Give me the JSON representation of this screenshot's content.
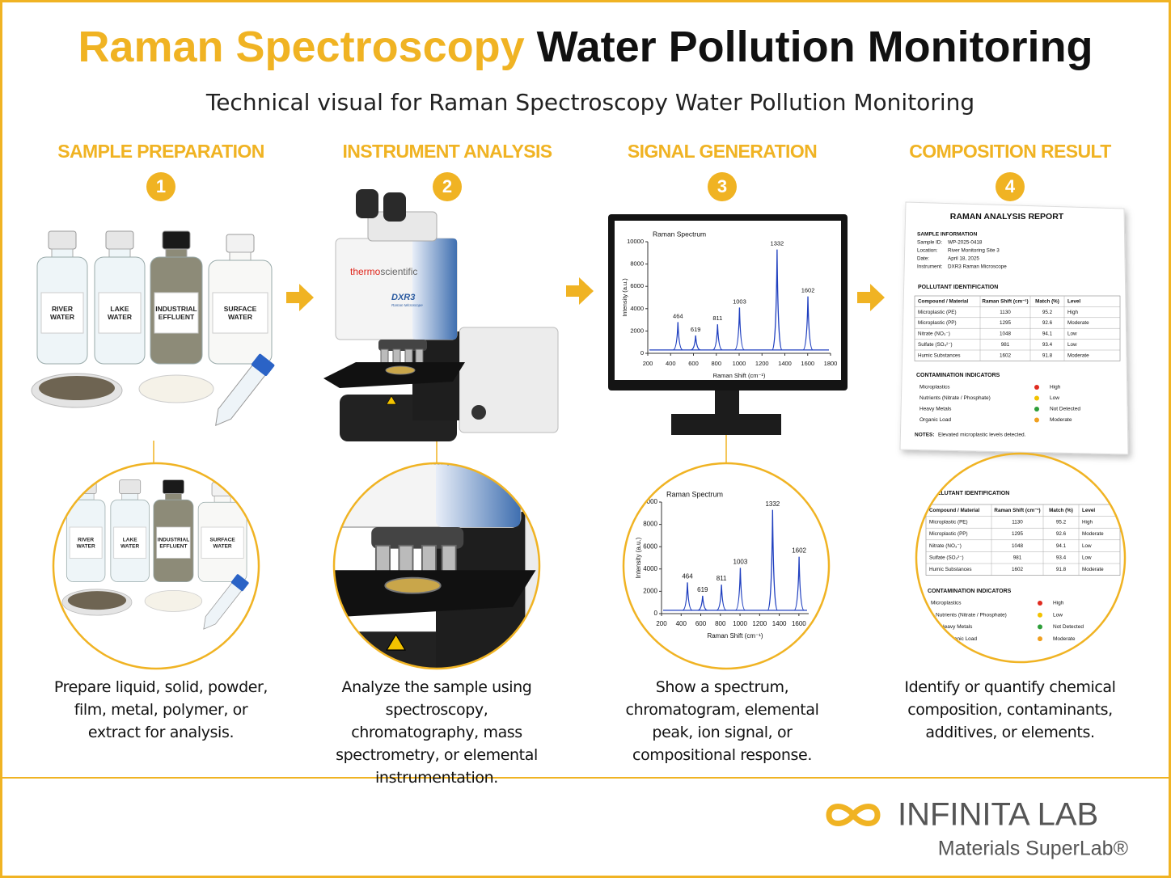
{
  "header": {
    "title_highlight": "Raman Spectroscopy",
    "title_rest": "Water Pollution Monitoring",
    "subtitle": "Technical visual for Raman Spectroscopy Water Pollution Monitoring"
  },
  "steps": [
    {
      "title": "SAMPLE PREPARATION",
      "number": 1,
      "description": "Prepare liquid, solid, powder, film, metal, polymer, or extract for analysis."
    },
    {
      "title": "INSTRUMENT ANALYSIS",
      "number": 2,
      "description": "Analyze the sample using spectroscopy, chromatography, mass spectrometry, or elemental instrumentation."
    },
    {
      "title": "SIGNAL GENERATION",
      "number": 3,
      "description": "Show a spectrum, chromatogram, elemental peak, ion signal, or compositional response."
    },
    {
      "title": "COMPOSITION RESULT",
      "number": 4,
      "description": "Identify or quantify chemical composition, contaminants, additives, or elements."
    }
  ],
  "samples": [
    "RIVER WATER",
    "LAKE WATER",
    "INDUSTRIAL EFFLUENT",
    "SURFACE WATER"
  ],
  "instrument": {
    "brand_a": "thermo",
    "brand_b": "scientific",
    "model": "DXR3",
    "model_sub": "Raman Microscope"
  },
  "spectrum": {
    "title": "Raman Spectrum",
    "x_label": "Raman Shift (cm⁻¹)",
    "y_label": "Intensity (a.u.)",
    "xlim": [
      200,
      1800
    ],
    "xticks": [
      200,
      400,
      600,
      800,
      1000,
      1200,
      1400,
      1600,
      1800
    ],
    "ylim": [
      0,
      10000
    ],
    "yticks": [
      0,
      2000,
      4000,
      6000,
      8000,
      10000
    ],
    "baseline": 300,
    "color": "#1f3fbf",
    "peaks": [
      {
        "x": 464,
        "y": 2800
      },
      {
        "x": 619,
        "y": 1600
      },
      {
        "x": 811,
        "y": 2600
      },
      {
        "x": 1003,
        "y": 4100
      },
      {
        "x": 1332,
        "y": 9300
      },
      {
        "x": 1602,
        "y": 5100
      }
    ],
    "zoom_xlim": [
      200,
      1700
    ],
    "zoom_xticks": [
      200,
      400,
      600,
      800,
      1000,
      1200,
      1400,
      1600
    ]
  },
  "report": {
    "title": "RAMAN ANALYSIS REPORT",
    "info_title": "SAMPLE INFORMATION",
    "info": [
      {
        "label": "Sample ID:",
        "value": "WP-2025-0418"
      },
      {
        "label": "Location:",
        "value": "River Monitoring Site 3"
      },
      {
        "label": "Date:",
        "value": "April 18, 2025"
      },
      {
        "label": "Instrument:",
        "value": "DXR3 Raman Microscope"
      }
    ],
    "pollutant_title": "POLLUTANT IDENTIFICATION",
    "columns": [
      "Compound / Material",
      "Raman Shift (cm⁻¹)",
      "Match (%)",
      "Level"
    ],
    "rows": [
      [
        "Microplastic (PE)",
        1130,
        95.2,
        "High"
      ],
      [
        "Microplastic (PP)",
        1295,
        92.6,
        "Moderate"
      ],
      [
        "Nitrate (NO₃⁻)",
        1048,
        94.1,
        "Low"
      ],
      [
        "Sulfate (SO₄²⁻)",
        981,
        93.4,
        "Low"
      ],
      [
        "Humic Substances",
        1602,
        91.8,
        "Moderate"
      ]
    ],
    "indicators_title": "CONTAMINATION INDICATORS",
    "indicators": [
      {
        "name": "Microplastics",
        "level": "High",
        "color": "#e02b20"
      },
      {
        "name": "Nutrients (Nitrate / Phosphate)",
        "level": "Low",
        "color": "#f2c200"
      },
      {
        "name": "Heavy Metals",
        "level": "Not Detected",
        "color": "#2e9e3a"
      },
      {
        "name": "Organic Load",
        "level": "Moderate",
        "color": "#f0a020"
      }
    ],
    "notes_label": "NOTES:",
    "notes": "Elevated microplastic levels detected."
  },
  "footer": {
    "brand": "INFINITA LAB",
    "tagline": "Materials SuperLab®"
  }
}
